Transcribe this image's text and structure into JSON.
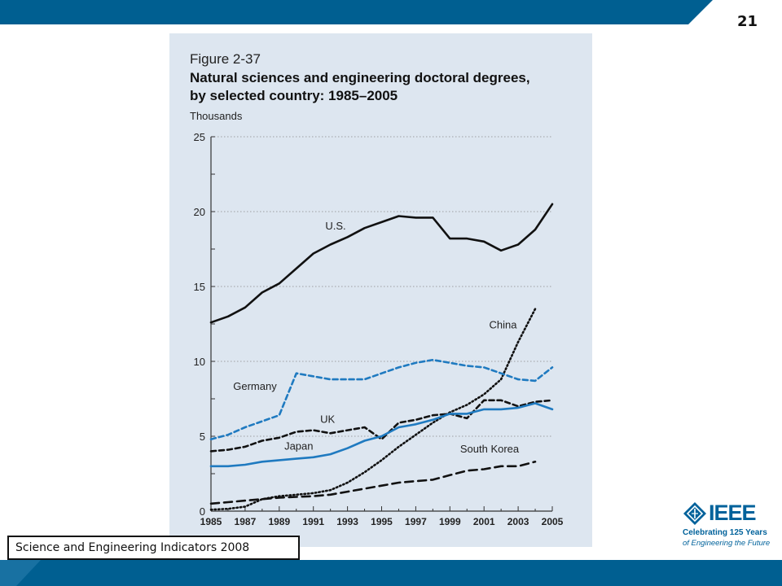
{
  "page_number": "21",
  "source_caption": "Science and Engineering Indicators 2008",
  "logo": {
    "icon": "ieee-diamond-icon",
    "word": "IEEE",
    "tagline_1": "Celebrating 125 Years",
    "tagline_2": "of Engineering the Future"
  },
  "colors": {
    "bar_blue": "#005f91",
    "panel_bg": "#dde6f0",
    "series_black": "#111111",
    "series_blue": "#1f7ac0",
    "brand": "#00629b"
  },
  "chart_data": {
    "type": "line",
    "figure_number": "Figure 2-37",
    "title_line1": "Natural sciences and engineering doctoral degrees,",
    "title_line2": "by selected country: 1985–2005",
    "ylabel": "Thousands",
    "xlabel": "",
    "ylim": [
      0,
      25
    ],
    "xlim": [
      1985,
      2005
    ],
    "y_ticks": [
      "0",
      "5",
      "10",
      "15",
      "20",
      "25"
    ],
    "y_tick_values": [
      0,
      5,
      10,
      15,
      20,
      25
    ],
    "x_ticks": [
      "1985",
      "1987",
      "1989",
      "1991",
      "1993",
      "1995",
      "1997",
      "1999",
      "2001",
      "2003",
      "2005"
    ],
    "x_tick_values": [
      1985,
      1987,
      1989,
      1991,
      1993,
      1995,
      1997,
      1999,
      2001,
      2003,
      2005
    ],
    "grid": "horizontal dotted",
    "legend": "labels on lines",
    "series": [
      {
        "name": "U.S.",
        "style": "solid",
        "color": "#111111",
        "x": [
          1985,
          1986,
          1987,
          1988,
          1989,
          1990,
          1991,
          1992,
          1993,
          1994,
          1995,
          1996,
          1997,
          1998,
          1999,
          2000,
          2001,
          2002,
          2003,
          2004,
          2005
        ],
        "values": [
          12.6,
          13.0,
          13.6,
          14.6,
          15.2,
          16.2,
          17.2,
          17.8,
          18.3,
          18.9,
          19.3,
          19.7,
          19.6,
          19.6,
          18.2,
          18.2,
          18.0,
          17.4,
          17.8,
          18.8,
          20.5
        ]
      },
      {
        "name": "China",
        "style": "dotted",
        "color": "#111111",
        "x": [
          1985,
          1986,
          1987,
          1988,
          1989,
          1990,
          1991,
          1992,
          1993,
          1994,
          1995,
          1996,
          1997,
          1998,
          1999,
          2000,
          2001,
          2002,
          2003,
          2004
        ],
        "values": [
          0.1,
          0.15,
          0.3,
          0.8,
          1.0,
          1.1,
          1.2,
          1.4,
          1.9,
          2.6,
          3.4,
          4.3,
          5.1,
          5.9,
          6.6,
          7.1,
          7.8,
          8.8,
          11.3,
          13.5
        ]
      },
      {
        "name": "Germany",
        "style": "dashed",
        "color": "#1f7ac0",
        "x": [
          1985,
          1986,
          1987,
          1988,
          1989,
          1990,
          1991,
          1992,
          1993,
          1994,
          1995,
          1996,
          1997,
          1998,
          1999,
          2000,
          2001,
          2002,
          2003,
          2004,
          2005
        ],
        "values": [
          4.8,
          5.1,
          5.6,
          6.0,
          6.4,
          9.2,
          9.0,
          8.8,
          8.8,
          8.8,
          9.2,
          9.6,
          9.9,
          10.1,
          9.9,
          9.7,
          9.6,
          9.2,
          8.8,
          8.7,
          9.6
        ]
      },
      {
        "name": "UK",
        "style": "dashed",
        "color": "#111111",
        "x": [
          1985,
          1986,
          1987,
          1988,
          1989,
          1990,
          1991,
          1992,
          1993,
          1994,
          1995,
          1996,
          1997,
          1998,
          1999,
          2000,
          2001,
          2002,
          2003,
          2004,
          2005
        ],
        "values": [
          4.0,
          4.1,
          4.3,
          4.7,
          4.9,
          5.3,
          5.4,
          5.2,
          5.4,
          5.6,
          4.8,
          5.9,
          6.1,
          6.4,
          6.5,
          6.2,
          7.4,
          7.4,
          7.0,
          7.3,
          7.4
        ]
      },
      {
        "name": "Japan",
        "style": "solid",
        "color": "#1f7ac0",
        "x": [
          1985,
          1986,
          1987,
          1988,
          1989,
          1990,
          1991,
          1992,
          1993,
          1994,
          1995,
          1996,
          1997,
          1998,
          1999,
          2000,
          2001,
          2002,
          2003,
          2004,
          2005
        ],
        "values": [
          3.0,
          3.0,
          3.1,
          3.3,
          3.4,
          3.5,
          3.6,
          3.8,
          4.2,
          4.7,
          5.0,
          5.6,
          5.8,
          6.1,
          6.5,
          6.5,
          6.8,
          6.8,
          6.9,
          7.2,
          6.8
        ]
      },
      {
        "name": "South Korea",
        "style": "long-dash",
        "color": "#111111",
        "x": [
          1985,
          1986,
          1987,
          1988,
          1989,
          1990,
          1991,
          1992,
          1993,
          1994,
          1995,
          1996,
          1997,
          1998,
          1999,
          2000,
          2001,
          2002,
          2003,
          2004
        ],
        "values": [
          0.5,
          0.6,
          0.7,
          0.8,
          0.9,
          0.95,
          1.0,
          1.1,
          1.3,
          1.5,
          1.7,
          1.9,
          2.0,
          2.1,
          2.4,
          2.7,
          2.8,
          3.0,
          3.0,
          3.3
        ]
      }
    ]
  }
}
